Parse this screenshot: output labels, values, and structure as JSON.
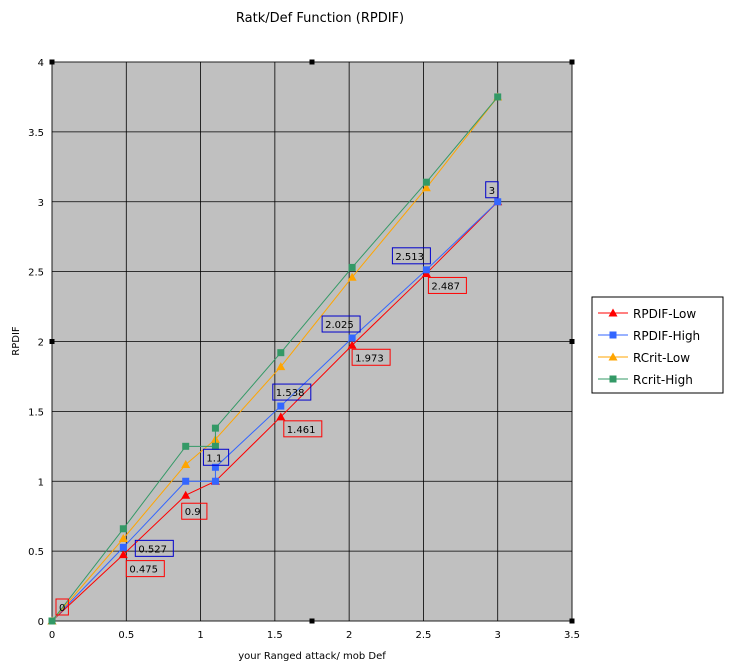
{
  "chart_data": {
    "type": "line",
    "title": "Ratk/Def Function (RPDIF)",
    "xlabel": "your Ranged attack/ mob Def",
    "ylabel": "RPDIF",
    "xlim": [
      0,
      3.5
    ],
    "ylim": [
      0,
      4
    ],
    "xticks": [
      "0",
      "0.5",
      "1",
      "1.5",
      "2",
      "2.5",
      "3",
      "3.5"
    ],
    "yticks": [
      "0",
      "0.5",
      "1",
      "1.5",
      "2",
      "2.5",
      "3",
      "3.5",
      "4"
    ],
    "grid": true,
    "plot_background": "#c0c0c0",
    "legend_position": "right",
    "series": [
      {
        "name": "RPDIF-Low",
        "color": "#ff0000",
        "marker": "triangle",
        "x": [
          0,
          0.48,
          0.9,
          1.1,
          1.54,
          2.02,
          2.52,
          3
        ],
        "y": [
          0,
          0.475,
          0.9,
          1.0,
          1.461,
          1.973,
          2.487,
          3.0
        ]
      },
      {
        "name": "RPDIF-High",
        "color": "#3366ff",
        "marker": "square",
        "x": [
          0,
          0.48,
          0.9,
          1.1,
          1.1,
          1.54,
          2.02,
          2.52,
          3
        ],
        "y": [
          0,
          0.527,
          1.0,
          1.0,
          1.1,
          1.538,
          2.025,
          2.513,
          3.0
        ]
      },
      {
        "name": "RCrit-Low",
        "color": "#ffa500",
        "marker": "triangle",
        "x": [
          0,
          0.48,
          0.9,
          1.1,
          1.54,
          2.02,
          2.52,
          3
        ],
        "y": [
          0,
          0.59,
          1.12,
          1.3,
          1.82,
          2.46,
          3.1,
          3.75
        ]
      },
      {
        "name": "Rcrit-High",
        "color": "#339966",
        "marker": "square",
        "x": [
          0,
          0.48,
          0.9,
          1.1,
          1.1,
          1.54,
          2.02,
          2.52,
          3
        ],
        "y": [
          0,
          0.66,
          1.25,
          1.25,
          1.38,
          1.92,
          2.53,
          3.14,
          3.75
        ]
      }
    ],
    "annotations": [
      {
        "text": "0",
        "x": 0,
        "y": 0,
        "series": "RPDIF-Low",
        "box_color": "#ff0000"
      },
      {
        "text": "0.475",
        "x": 0.48,
        "y": 0.475,
        "series": "RPDIF-Low",
        "box_color": "#ff0000"
      },
      {
        "text": "0.527",
        "x": 0.48,
        "y": 0.527,
        "series": "RPDIF-High",
        "box_color": "#0000cc"
      },
      {
        "text": "0.9",
        "x": 0.9,
        "y": 0.9,
        "series": "RPDIF-Low",
        "box_color": "#ff0000"
      },
      {
        "text": "1.1",
        "x": 1.1,
        "y": 1.1,
        "series": "RPDIF-High",
        "box_color": "#0000cc"
      },
      {
        "text": "1.461",
        "x": 1.54,
        "y": 1.461,
        "series": "RPDIF-Low",
        "box_color": "#ff0000"
      },
      {
        "text": "1.538",
        "x": 1.54,
        "y": 1.538,
        "series": "RPDIF-High",
        "box_color": "#0000cc"
      },
      {
        "text": "1.973",
        "x": 2.02,
        "y": 1.973,
        "series": "RPDIF-Low",
        "box_color": "#ff0000"
      },
      {
        "text": "2.025",
        "x": 2.02,
        "y": 2.025,
        "series": "RPDIF-High",
        "box_color": "#0000cc"
      },
      {
        "text": "2.487",
        "x": 2.52,
        "y": 2.487,
        "series": "RPDIF-Low",
        "box_color": "#ff0000"
      },
      {
        "text": "2.513",
        "x": 2.52,
        "y": 2.513,
        "series": "RPDIF-High",
        "box_color": "#0000cc"
      },
      {
        "text": "3",
        "x": 3,
        "y": 3.0,
        "series": "RPDIF-High",
        "box_color": "#0000cc"
      }
    ]
  }
}
